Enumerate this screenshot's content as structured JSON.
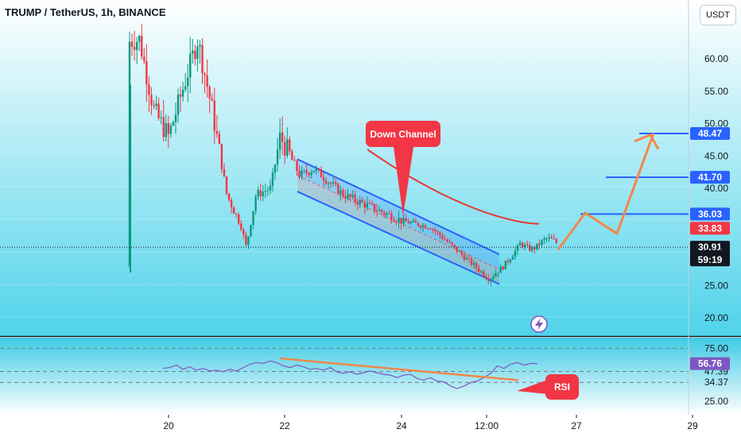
{
  "header": {
    "title": "TRUMP / TetherUS, 1h, BINANCE",
    "currency_button": "USDT"
  },
  "colors": {
    "background_top": "#ffffff",
    "background_bottom": "#4fd3ea",
    "candle_up": "#089981",
    "candle_down": "#f23645",
    "channel": "#2962ff",
    "ma": "#e53935",
    "arrow": "#f2874a",
    "rsi_line": "#7e57c2",
    "callout": "#f23645"
  },
  "annotations": {
    "down_channel": "Down Channel",
    "rsi_callout": "RSI"
  },
  "chart_data": [
    {
      "type": "candlestick",
      "title": "",
      "xlabel": "",
      "ylabel": "",
      "x_ticks": [
        "20",
        "22",
        "24",
        "12:00",
        "27",
        "29"
      ],
      "y_ticks": [
        "60.00",
        "55.00",
        "50.00",
        "45.00",
        "40.00",
        "30.00",
        "25.00",
        "20.00"
      ],
      "ylim": [
        17,
        72
      ],
      "price_path": [
        {
          "t": "18 12:00",
          "low": 27,
          "high": 68
        },
        {
          "t": "19 00:00",
          "close": 62
        },
        {
          "t": "19 12:00",
          "close": 63
        },
        {
          "t": "19 18:00",
          "close": 52
        },
        {
          "t": "20 00:00",
          "close": 48
        },
        {
          "t": "20 12:00",
          "close": 63
        },
        {
          "t": "20 18:00",
          "close": 52
        },
        {
          "t": "21 00:00",
          "close": 39
        },
        {
          "t": "21 06:00",
          "close": 34
        },
        {
          "t": "21 08:00",
          "low": 30.9
        },
        {
          "t": "21 12:00",
          "close": 39
        },
        {
          "t": "21 18:00",
          "close": 40
        },
        {
          "t": "21 22:00",
          "close": 48
        },
        {
          "t": "22 06:00",
          "close": 42
        },
        {
          "t": "22 12:00",
          "close": 43
        },
        {
          "t": "23 00:00",
          "close": 39
        },
        {
          "t": "24 00:00",
          "close": 35
        },
        {
          "t": "24 12:00",
          "close": 34
        },
        {
          "t": "25 00:00",
          "close": 30
        },
        {
          "t": "25 12:00",
          "close": 26
        },
        {
          "t": "25 18:00",
          "close": 28
        },
        {
          "t": "26 00:00",
          "close": 30.9
        }
      ],
      "levels": [
        {
          "label": "48.47",
          "value": 48.47
        },
        {
          "label": "41.70",
          "value": 41.7
        },
        {
          "label": "36.03",
          "value": 36.03
        },
        {
          "label": "33.83",
          "value": 33.83
        },
        {
          "label": "30.91",
          "value": 30.91
        }
      ],
      "countdown": "59:19",
      "moving_average": {
        "from_value": 46,
        "to_value": 34.5
      },
      "projection_path": [
        30.5,
        36.2,
        33.0,
        48.5
      ],
      "channel": {
        "upper_from": 44.5,
        "upper_to": 29.8,
        "lower_from": 39.5,
        "lower_to": 25.2
      }
    },
    {
      "type": "line",
      "series": [
        {
          "values": [
            51,
            52,
            55,
            50,
            53,
            49,
            51,
            48,
            49,
            47,
            50,
            48,
            52,
            56,
            58,
            57,
            60,
            58,
            54,
            52,
            55,
            53,
            50,
            51,
            49,
            52,
            47,
            45,
            47,
            44,
            46,
            48,
            46,
            44,
            43,
            40,
            43,
            44,
            39,
            37,
            40,
            36,
            35,
            30,
            27,
            30,
            34,
            36,
            40,
            45,
            54,
            51,
            56,
            58,
            55,
            57,
            56.76
          ]
        }
      ],
      "y_ticks": [
        "75.00",
        "47.39",
        "34.37",
        "25.00"
      ],
      "current_value": "56.76",
      "trendline": {
        "from": 63,
        "to": 37
      }
    }
  ]
}
